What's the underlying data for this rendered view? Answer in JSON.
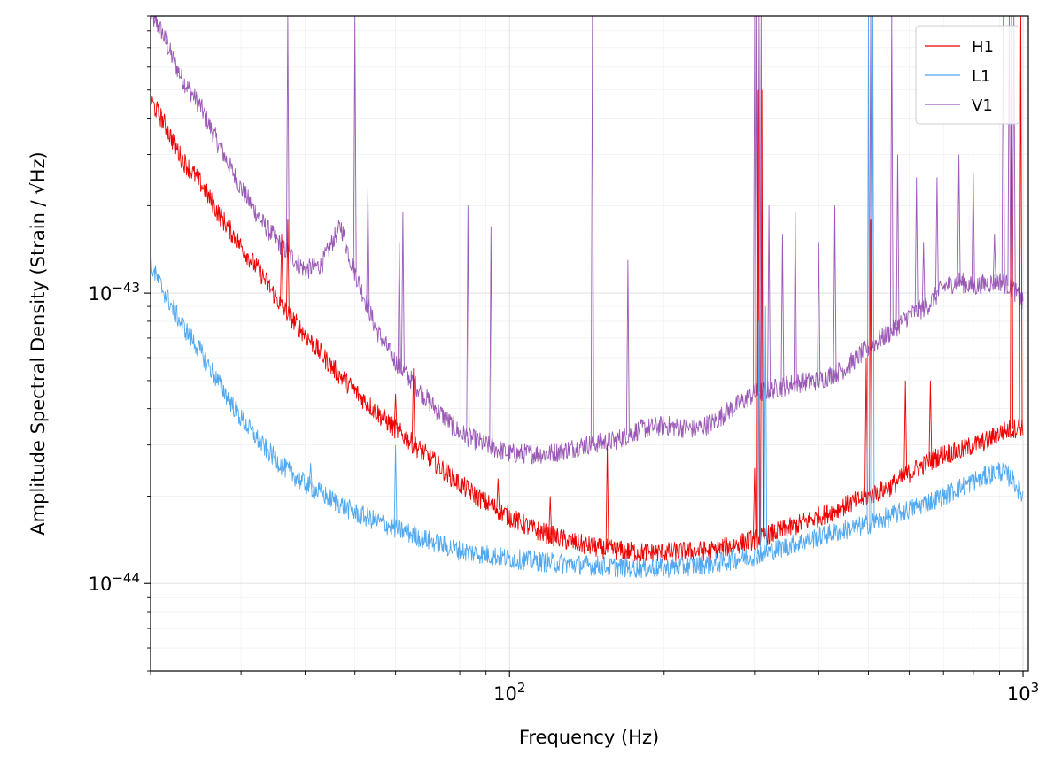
{
  "chart_data": {
    "type": "line",
    "title": "",
    "xlabel": "Frequency (Hz)",
    "ylabel": "Amplitude Spectral Density (Strain / √Hz)",
    "xscale": "log",
    "yscale": "log",
    "xlim": [
      20,
      1024
    ],
    "ylim": [
      5e-45,
      9e-43
    ],
    "grid": "on (major and minor, light)",
    "legend_position": "top-right",
    "x_ticks": [
      {
        "value": 100,
        "base": "10",
        "exp": "2"
      },
      {
        "value": 1000,
        "base": "10",
        "exp": "3"
      }
    ],
    "y_ticks": [
      {
        "value": 1e-44,
        "base": "10",
        "exp": "−44"
      },
      {
        "value": 1e-43,
        "base": "10",
        "exp": "−43"
      }
    ],
    "series": [
      {
        "name": "H1",
        "color": "#ee0000",
        "points": [
          [
            20,
            4.6e-43
          ],
          [
            21,
            4e-43
          ],
          [
            22,
            3.4e-43
          ],
          [
            23,
            2.9e-43
          ],
          [
            25,
            2.4e-43
          ],
          [
            27,
            1.9e-43
          ],
          [
            30,
            1.45e-43
          ],
          [
            33,
            1.15e-43
          ],
          [
            36,
            9e-44
          ],
          [
            40,
            7.2e-44
          ],
          [
            45,
            5.6e-44
          ],
          [
            50,
            4.6e-44
          ],
          [
            55,
            3.9e-44
          ],
          [
            60,
            3.4e-44
          ],
          [
            70,
            2.7e-44
          ],
          [
            80,
            2.2e-44
          ],
          [
            90,
            1.9e-44
          ],
          [
            100,
            1.7e-44
          ],
          [
            110,
            1.55e-44
          ],
          [
            130,
            1.4e-44
          ],
          [
            150,
            1.32e-44
          ],
          [
            180,
            1.28e-44
          ],
          [
            200,
            1.28e-44
          ],
          [
            250,
            1.3e-44
          ],
          [
            300,
            1.42e-44
          ],
          [
            350,
            1.55e-44
          ],
          [
            400,
            1.7e-44
          ],
          [
            450,
            1.85e-44
          ],
          [
            500,
            2e-44
          ],
          [
            550,
            2.15e-44
          ],
          [
            600,
            2.4e-44
          ],
          [
            650,
            2.6e-44
          ],
          [
            700,
            2.8e-44
          ],
          [
            750,
            2.85e-44
          ],
          [
            800,
            3e-44
          ],
          [
            850,
            3.1e-44
          ],
          [
            900,
            3.3e-44
          ],
          [
            950,
            3.4e-44
          ],
          [
            1000,
            3.5e-44
          ]
        ],
        "lines": [
          [
            36,
            1.6e-43
          ],
          [
            37,
            1.8e-43
          ],
          [
            57,
            4e-44
          ],
          [
            60,
            4.5e-44
          ],
          [
            65,
            5.5e-44
          ],
          [
            95,
            2.3e-44
          ],
          [
            120,
            2e-44
          ],
          [
            155,
            3e-44
          ],
          [
            300,
            2.5e-44
          ],
          [
            305,
            5e-43
          ],
          [
            310,
            5e-43
          ],
          [
            495,
            6e-44
          ],
          [
            505,
            1.8e-43
          ],
          [
            590,
            5e-44
          ],
          [
            660,
            5e-44
          ],
          [
            950,
            1e-41
          ],
          [
            990,
            9e-42
          ]
        ]
      },
      {
        "name": "L1",
        "color": "#4fa8f0",
        "points": [
          [
            20,
            1.25e-43
          ],
          [
            21,
            1.05e-43
          ],
          [
            22,
            9e-44
          ],
          [
            23,
            7.8e-44
          ],
          [
            25,
            6.3e-44
          ],
          [
            27,
            5e-44
          ],
          [
            30,
            3.7e-44
          ],
          [
            33,
            3e-44
          ],
          [
            36,
            2.55e-44
          ],
          [
            40,
            2.2e-44
          ],
          [
            45,
            1.95e-44
          ],
          [
            50,
            1.75e-44
          ],
          [
            60,
            1.55e-44
          ],
          [
            70,
            1.4e-44
          ],
          [
            80,
            1.3e-44
          ],
          [
            100,
            1.22e-44
          ],
          [
            120,
            1.18e-44
          ],
          [
            150,
            1.15e-44
          ],
          [
            180,
            1.13e-44
          ],
          [
            200,
            1.13e-44
          ],
          [
            250,
            1.17e-44
          ],
          [
            300,
            1.25e-44
          ],
          [
            350,
            1.35e-44
          ],
          [
            400,
            1.45e-44
          ],
          [
            500,
            1.6e-44
          ],
          [
            600,
            1.8e-44
          ],
          [
            700,
            2e-44
          ],
          [
            800,
            2.25e-44
          ],
          [
            900,
            2.45e-44
          ],
          [
            950,
            2.3e-44
          ],
          [
            1000,
            2e-44
          ]
        ],
        "lines": [
          [
            41,
            2.6e-44
          ],
          [
            60,
            3e-44
          ],
          [
            306,
            8e-44
          ],
          [
            315,
            9e-44
          ],
          [
            500,
            1e-41
          ],
          [
            510,
            1e-41
          ]
        ]
      },
      {
        "name": "V1",
        "color": "#9b59b6",
        "points": [
          [
            20,
            9e-43
          ],
          [
            21,
            8e-43
          ],
          [
            22,
            6.5e-43
          ],
          [
            23,
            5.5e-43
          ],
          [
            25,
            4.4e-43
          ],
          [
            27,
            3.3e-43
          ],
          [
            30,
            2.3e-43
          ],
          [
            33,
            1.75e-43
          ],
          [
            36,
            1.45e-43
          ],
          [
            40,
            1.2e-43
          ],
          [
            43,
            1.25e-43
          ],
          [
            46,
            1.6e-43
          ],
          [
            47,
            1.7e-43
          ],
          [
            49,
            1.3e-43
          ],
          [
            55,
            7.5e-44
          ],
          [
            60,
            5.8e-44
          ],
          [
            70,
            4.2e-44
          ],
          [
            80,
            3.3e-44
          ],
          [
            90,
            3e-44
          ],
          [
            100,
            2.8e-44
          ],
          [
            120,
            2.8e-44
          ],
          [
            140,
            3e-44
          ],
          [
            160,
            3.1e-44
          ],
          [
            180,
            3.4e-44
          ],
          [
            200,
            3.5e-44
          ],
          [
            230,
            3.4e-44
          ],
          [
            250,
            3.6e-44
          ],
          [
            270,
            4e-44
          ],
          [
            300,
            4.5e-44
          ],
          [
            330,
            4.7e-44
          ],
          [
            360,
            4.9e-44
          ],
          [
            400,
            5e-44
          ],
          [
            450,
            5.5e-44
          ],
          [
            500,
            6.5e-44
          ],
          [
            550,
            7.3e-44
          ],
          [
            600,
            8.4e-44
          ],
          [
            650,
            9e-44
          ],
          [
            700,
            1.05e-43
          ],
          [
            750,
            1.1e-43
          ],
          [
            800,
            1.05e-43
          ],
          [
            850,
            1.08e-43
          ],
          [
            900,
            1.1e-43
          ],
          [
            950,
            1.05e-43
          ],
          [
            1000,
            9.2e-44
          ]
        ],
        "lines": [
          [
            20.5,
            9e-43
          ],
          [
            21.5,
            8e-43
          ],
          [
            37,
            9e-43
          ],
          [
            50,
            9e-43
          ],
          [
            53,
            2.3e-43
          ],
          [
            61,
            1.5e-43
          ],
          [
            62,
            1.9e-43
          ],
          [
            83,
            2e-43
          ],
          [
            92,
            1.7e-43
          ],
          [
            145,
            9e-43
          ],
          [
            170,
            1.3e-43
          ],
          [
            300,
            9e-43
          ],
          [
            303,
            9e-43
          ],
          [
            306,
            9e-43
          ],
          [
            309,
            9e-43
          ],
          [
            320,
            2e-43
          ],
          [
            340,
            1.6e-43
          ],
          [
            360,
            1.9e-43
          ],
          [
            400,
            1.5e-43
          ],
          [
            430,
            2e-43
          ],
          [
            505,
            9e-43
          ],
          [
            555,
            9e-43
          ],
          [
            570,
            3e-43
          ],
          [
            620,
            2.5e-43
          ],
          [
            640,
            1.5e-43
          ],
          [
            680,
            2.5e-43
          ],
          [
            750,
            3e-43
          ],
          [
            800,
            2.6e-43
          ],
          [
            880,
            1.6e-43
          ],
          [
            915,
            9e-43
          ],
          [
            940,
            9e-43
          ],
          [
            960,
            9e-43
          ]
        ]
      }
    ]
  }
}
